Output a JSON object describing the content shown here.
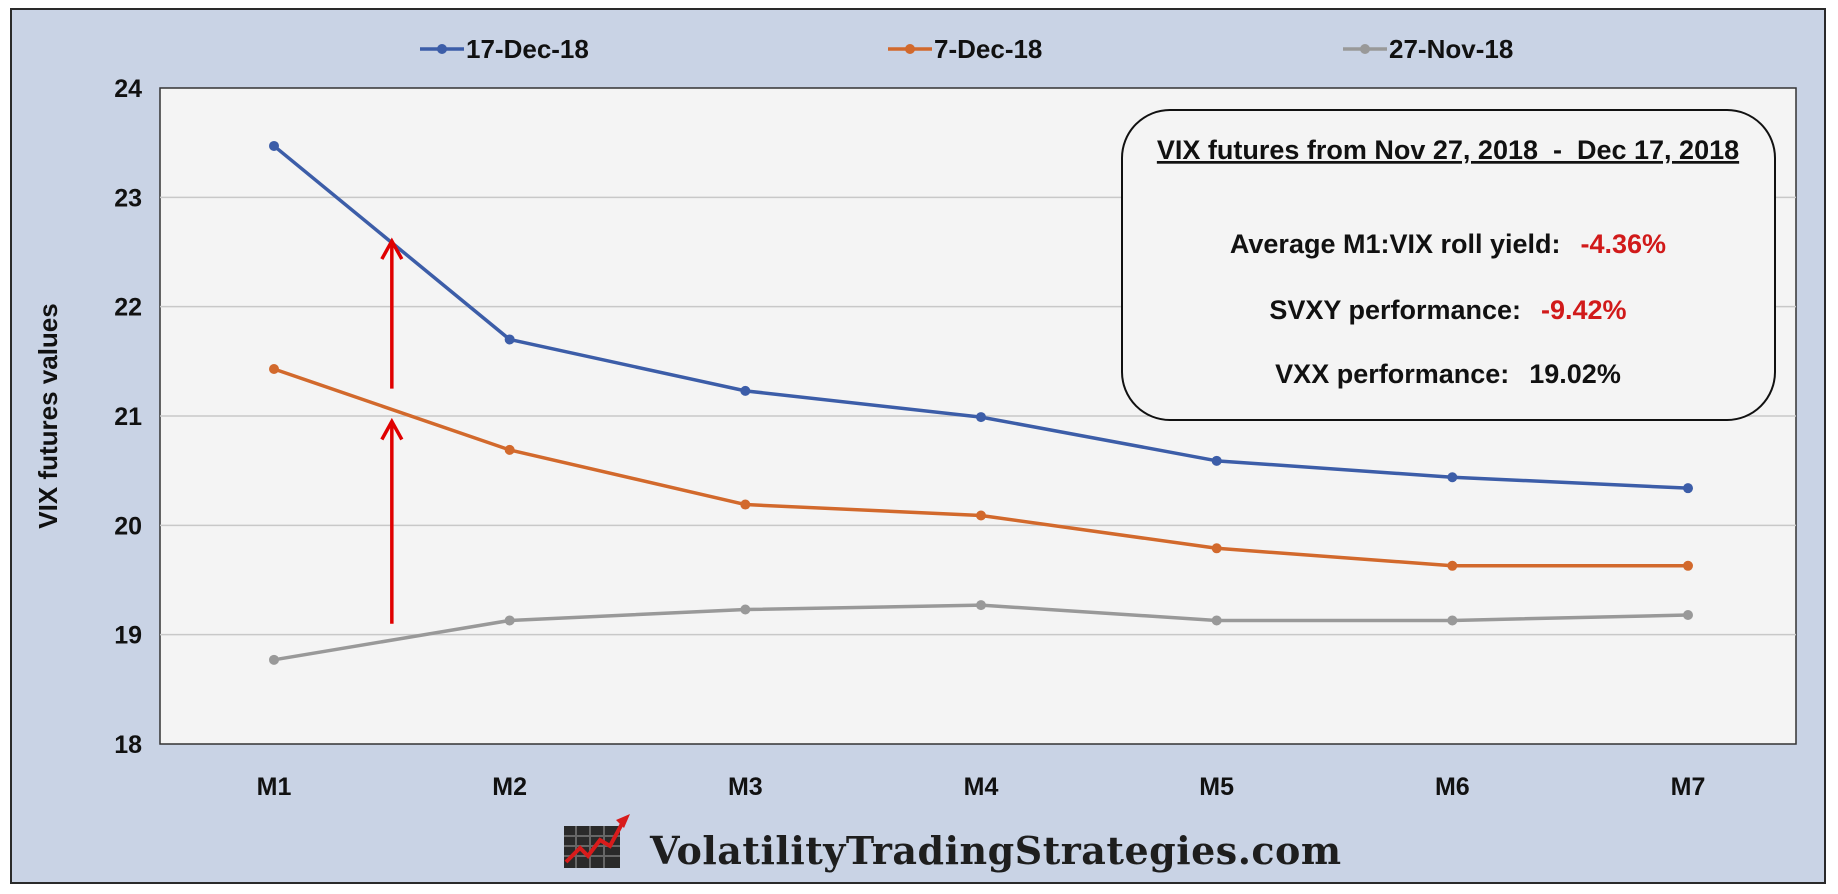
{
  "chart_data": {
    "type": "line",
    "categories": [
      "M1",
      "M2",
      "M3",
      "M4",
      "M5",
      "M6",
      "M7"
    ],
    "series": [
      {
        "name": "17-Dec-18",
        "color": "#3c5da8",
        "values": [
          23.47,
          21.7,
          21.23,
          20.99,
          20.59,
          20.44,
          20.34
        ]
      },
      {
        "name": "7-Dec-18",
        "color": "#d2692c",
        "values": [
          21.43,
          20.69,
          20.19,
          20.09,
          19.79,
          19.63,
          19.63
        ]
      },
      {
        "name": "27-Nov-18",
        "color": "#999999",
        "values": [
          18.77,
          19.13,
          19.23,
          19.27,
          19.13,
          19.13,
          19.18
        ]
      }
    ],
    "ylabel": "VIX futures values",
    "ylim": [
      18,
      24
    ],
    "yticks": [
      "18",
      "19",
      "20",
      "21",
      "22",
      "23",
      "24"
    ],
    "grid": true,
    "legend_position": "top",
    "annotations": {
      "arrows": [
        {
          "x": "M1–M2 midpoint",
          "from": 19.1,
          "to": 20.95,
          "color": "#e00000"
        },
        {
          "x": "M1–M2 midpoint",
          "from": 21.25,
          "to": 22.6,
          "color": "#e00000"
        }
      ]
    }
  },
  "info_box": {
    "title": "VIX futures from Nov 27, 2018  -  Dec 17, 2018",
    "rows": [
      {
        "label": "Average M1:VIX roll yield:",
        "value": "-4.36%",
        "value_color": "#d11a1a"
      },
      {
        "label": "SVXY performance:",
        "value": "-9.42%",
        "value_color": "#d11a1a"
      },
      {
        "label": "VXX performance:",
        "value": "19.02%",
        "value_color": "#111111"
      }
    ]
  },
  "watermark": {
    "text": "VolatilityTradingStrategies.com",
    "icon": "chart-logo-icon"
  }
}
